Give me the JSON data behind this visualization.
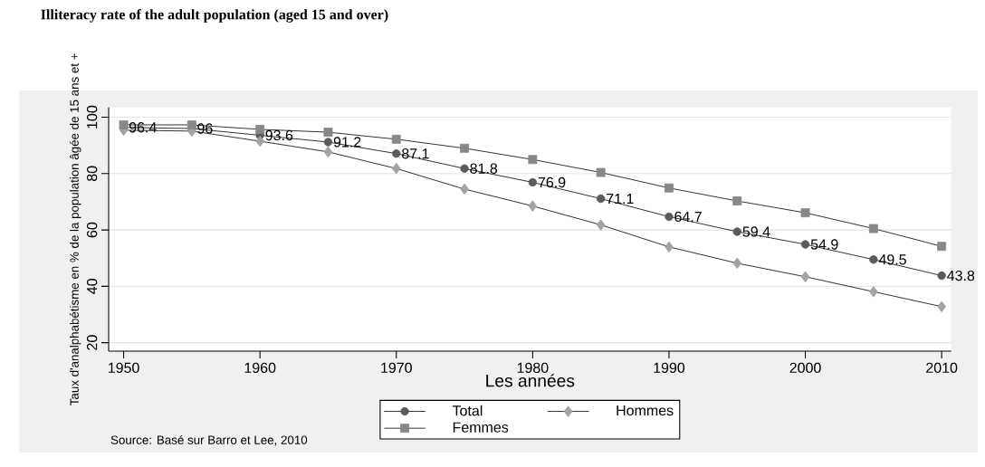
{
  "chart_data": {
    "type": "line",
    "title": "Illiteracy rate of the adult population (aged 15 and over)",
    "xlabel": "Les années",
    "ylabel": "Taux d'analphabétisme en % de la population âgée de 15 ans et +",
    "x": [
      1950,
      1955,
      1960,
      1965,
      1970,
      1975,
      1980,
      1985,
      1990,
      1995,
      2000,
      2005,
      2010
    ],
    "xlim": [
      1948.9,
      2010.7
    ],
    "ylim": [
      17,
      103.5
    ],
    "xticks": [
      1950,
      1960,
      1970,
      1980,
      1990,
      2000,
      2010
    ],
    "yticks": [
      20,
      40,
      60,
      80,
      100
    ],
    "series": [
      {
        "name": "Total",
        "color": "#5a5a5a",
        "marker": "circle",
        "values": [
          96.4,
          96,
          93.6,
          91.2,
          87.1,
          81.8,
          76.9,
          71.1,
          64.7,
          59.4,
          54.9,
          49.5,
          43.8
        ],
        "value_labels": [
          "96.4",
          "96",
          "93.6",
          "91.2",
          "87.1",
          "81.8",
          "76.9",
          "71.1",
          "64.7",
          "59.4",
          "54.9",
          "49.5",
          "43.8"
        ]
      },
      {
        "name": "Hommes",
        "color": "#a3a3a3",
        "marker": "diamond",
        "values": [
          95.4,
          95.1,
          91.5,
          87.7,
          81.8,
          74.5,
          68.5,
          61.8,
          54.0,
          48.2,
          43.4,
          38.1,
          32.8
        ]
      },
      {
        "name": "Femmes",
        "color": "#878787",
        "marker": "square",
        "values": [
          97.3,
          97.3,
          95.7,
          94.7,
          92.2,
          89.0,
          85.0,
          80.4,
          74.9,
          70.3,
          66.1,
          60.5,
          54.2
        ]
      }
    ],
    "grid": "y",
    "legend": "bottom",
    "annotations": [
      "Source:  Basé sur Barro et Lee, 2010"
    ]
  }
}
